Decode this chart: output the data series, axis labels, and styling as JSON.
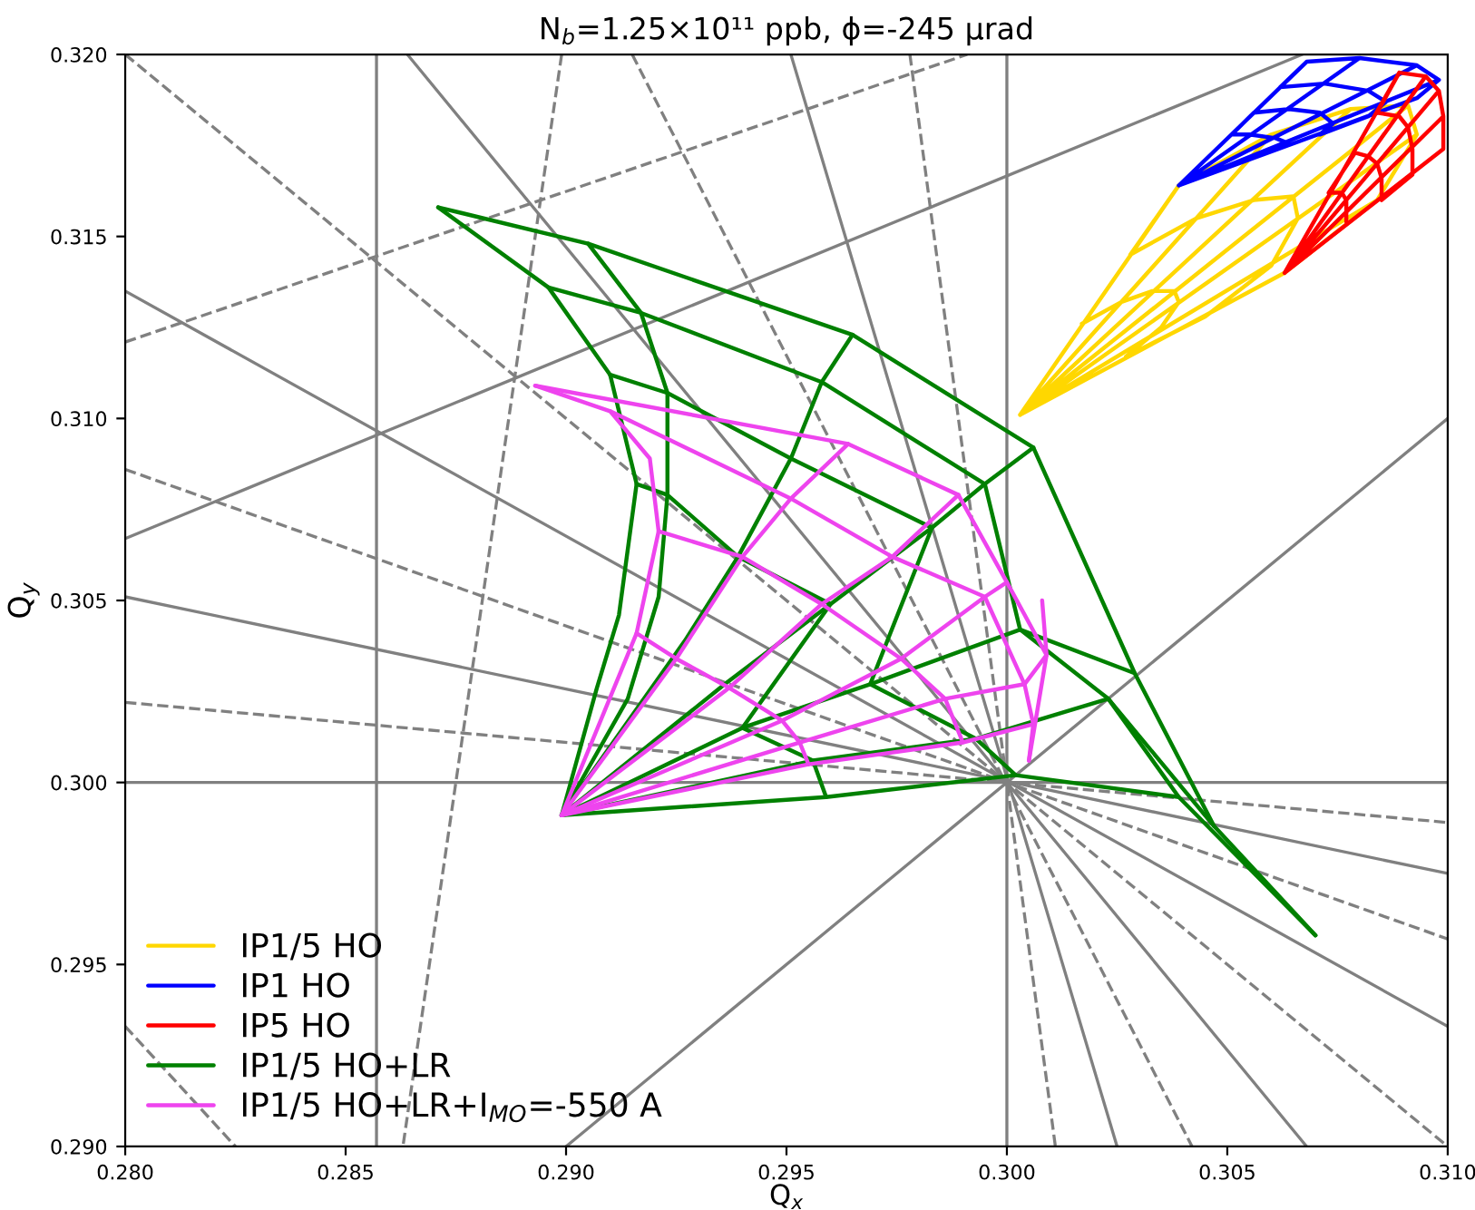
{
  "chart_data": {
    "type": "line",
    "title": "N$_{b}$=1.25×10¹¹ ppb, ϕ=-245 μrad",
    "xlabel": "Q$_{x}$",
    "ylabel": "Q$_{y}$",
    "xlim": [
      0.28,
      0.31
    ],
    "ylim": [
      0.29,
      0.32
    ],
    "xticks": [
      {
        "value": 0.28,
        "label": "0.280"
      },
      {
        "value": 0.285,
        "label": "0.285"
      },
      {
        "value": 0.29,
        "label": "0.290"
      },
      {
        "value": 0.295,
        "label": "0.295"
      },
      {
        "value": 0.3,
        "label": "0.300"
      },
      {
        "value": 0.305,
        "label": "0.305"
      },
      {
        "value": 0.31,
        "label": "0.310"
      }
    ],
    "yticks": [
      {
        "value": 0.29,
        "label": "0.290"
      },
      {
        "value": 0.295,
        "label": "0.295"
      },
      {
        "value": 0.3,
        "label": "0.300"
      },
      {
        "value": 0.305,
        "label": "0.305"
      },
      {
        "value": 0.31,
        "label": "0.310"
      },
      {
        "value": 0.315,
        "label": "0.315"
      },
      {
        "value": 0.32,
        "label": "0.320"
      }
    ],
    "legend": "bottom left",
    "marker": "none",
    "ref_lines": [
      {
        "axis": "x",
        "value": 0.3,
        "color": "#808080",
        "line_style": "solid"
      },
      {
        "axis": "x",
        "value": 0.2857,
        "color": "#808080",
        "line_style": "solid"
      },
      {
        "axis": "y",
        "value": 0.3,
        "color": "#808080",
        "line_style": "solid"
      }
    ],
    "series": [
      {
        "color": "#808080",
        "line_style": "solid",
        "x": [
          0.29,
          0.31
        ],
        "values": [
          0.29,
          0.31
        ]
      },
      {
        "color": "#808080",
        "line_style": "solid",
        "x": [
          0.28,
          0.3067
        ],
        "values": [
          0.3067,
          0.32
        ]
      },
      {
        "color": "#808080",
        "line_style": "solid",
        "x": [
          0.28,
          0.31
        ],
        "values": [
          0.3135,
          0.2933
        ]
      },
      {
        "color": "#808080",
        "line_style": "solid",
        "x": [
          0.28,
          0.31
        ],
        "values": [
          0.3051,
          0.2975
        ]
      },
      {
        "color": "#808080",
        "line_style": "solid",
        "x": [
          0.2864,
          0.3068
        ],
        "values": [
          0.32,
          0.29
        ]
      },
      {
        "color": "#808080",
        "line_style": "solid",
        "x": [
          0.2951,
          0.3025
        ],
        "values": [
          0.32,
          0.29
        ]
      },
      {
        "color": "#808080",
        "line_style": "dashed",
        "x": [
          0.28,
          0.31
        ],
        "values": [
          0.32,
          0.29
        ]
      },
      {
        "color": "#808080",
        "line_style": "dashed",
        "x": [
          0.28,
          0.31
        ],
        "values": [
          0.3086,
          0.2957
        ]
      },
      {
        "color": "#808080",
        "line_style": "dashed",
        "x": [
          0.28,
          0.31
        ],
        "values": [
          0.3022,
          0.2989
        ]
      },
      {
        "color": "#808080",
        "line_style": "dashed",
        "x": [
          0.2915,
          0.3042
        ],
        "values": [
          0.32,
          0.29
        ]
      },
      {
        "color": "#808080",
        "line_style": "dashed",
        "x": [
          0.2978,
          0.3011
        ],
        "values": [
          0.32,
          0.29
        ]
      },
      {
        "color": "#808080",
        "line_style": "dashed",
        "x": [
          0.28,
          0.2991
        ],
        "values": [
          0.3121,
          0.32
        ]
      },
      {
        "color": "#808080",
        "line_style": "dashed",
        "x": [
          0.2899,
          0.2863
        ],
        "values": [
          0.32,
          0.29
        ]
      },
      {
        "color": "#808080",
        "line_style": "dashed",
        "x": [
          0.28,
          0.2825
        ],
        "values": [
          0.2933,
          0.29
        ]
      },
      {
        "name": "IP1/5 HO",
        "color": "#ffd700",
        "x": [
          0.3003,
          0.3039,
          0.306,
          0.3003,
          0.3078,
          0.3091,
          0.3003,
          0.3093,
          0.3084,
          0.3003,
          0.3063,
          0.3084,
          0.3093,
          0.3091,
          0.3078,
          0.306,
          0.3039,
          0.3028,
          0.3043,
          0.3056,
          0.3065,
          0.3066,
          0.306,
          0.3045,
          0.3027,
          0.3035,
          0.3039,
          0.3038,
          0.3033,
          0.3026,
          0.3017
        ],
        "values": [
          0.3101,
          0.3164,
          0.3178,
          0.3101,
          0.3185,
          0.3186,
          0.3101,
          0.3178,
          0.316,
          0.3101,
          0.314,
          0.316,
          0.3178,
          0.3186,
          0.3185,
          0.3178,
          0.3164,
          0.3145,
          0.3155,
          0.316,
          0.3161,
          0.3155,
          0.3142,
          0.3128,
          0.3117,
          0.3125,
          0.3132,
          0.3135,
          0.3135,
          0.3132,
          0.3126
        ]
      },
      {
        "name": "IP1 HO",
        "color": "#0000ff",
        "x": [
          0.3039,
          0.3068,
          0.308,
          0.3039,
          0.3093,
          0.3098,
          0.3039,
          0.3093,
          0.3098,
          0.3093,
          0.308,
          0.3068,
          0.3062,
          0.3072,
          0.3082,
          0.3086,
          0.3082,
          0.3071,
          0.3074,
          0.3071,
          0.3064,
          0.3056,
          0.3051,
          0.3055,
          0.3061,
          0.3063,
          0.3061
        ],
        "values": [
          0.3164,
          0.3198,
          0.3199,
          0.3164,
          0.3197,
          0.3193,
          0.3164,
          0.3188,
          0.3193,
          0.3197,
          0.3199,
          0.3198,
          0.3191,
          0.3192,
          0.319,
          0.3187,
          0.3183,
          0.3178,
          0.3181,
          0.3184,
          0.3185,
          0.3184,
          0.3178,
          0.3178,
          0.3177,
          0.3176,
          0.3174
        ]
      },
      {
        "name": "IP5 HO",
        "color": "#ff0000",
        "x": [
          0.3063,
          0.3089,
          0.3095,
          0.3063,
          0.3098,
          0.3099,
          0.3063,
          0.3099,
          0.3099,
          0.3098,
          0.3095,
          0.3089,
          0.3084,
          0.3089,
          0.3091,
          0.3092,
          0.3092,
          0.3085,
          0.3085,
          0.3084,
          0.3082,
          0.3079,
          0.3073,
          0.3076,
          0.3077,
          0.3077,
          0.3077
        ],
        "values": [
          0.314,
          0.3195,
          0.3194,
          0.314,
          0.319,
          0.3183,
          0.314,
          0.3174,
          0.3183,
          0.319,
          0.3194,
          0.3195,
          0.3184,
          0.3183,
          0.318,
          0.3174,
          0.3167,
          0.316,
          0.3166,
          0.317,
          0.3172,
          0.3173,
          0.3162,
          0.3162,
          0.316,
          0.3157,
          0.3154
        ]
      },
      {
        "name": "IP1/5 HO+LR",
        "color": "#008000",
        "x": [
          0.2899,
          0.2907,
          0.2912,
          0.2916,
          0.291,
          0.2896,
          0.2871
        ],
        "values": [
          0.2991,
          0.3026,
          0.3046,
          0.3082,
          0.3112,
          0.3136,
          0.3158
        ]
      },
      {
        "color": "#008000",
        "x": [
          0.2899,
          0.2914,
          0.2921,
          0.2923,
          0.2923,
          0.2917,
          0.2905
        ],
        "values": [
          0.2991,
          0.3023,
          0.3051,
          0.3079,
          0.3107,
          0.3129,
          0.3148
        ]
      },
      {
        "color": "#008000",
        "x": [
          0.2899,
          0.2927,
          0.2939,
          0.2951,
          0.2958,
          0.2965
        ],
        "values": [
          0.2991,
          0.3039,
          0.3062,
          0.3089,
          0.311,
          0.3123
        ]
      },
      {
        "color": "#008000",
        "x": [
          0.2899,
          0.2936,
          0.296,
          0.2983,
          0.2995,
          0.3006
        ],
        "values": [
          0.2991,
          0.3027,
          0.3049,
          0.307,
          0.3082,
          0.3092
        ]
      },
      {
        "color": "#008000",
        "x": [
          0.2899,
          0.294,
          0.2969,
          0.3003,
          0.3029
        ],
        "values": [
          0.2991,
          0.3015,
          0.3027,
          0.3042,
          0.303
        ]
      },
      {
        "color": "#008000",
        "x": [
          0.2899,
          0.2956,
          0.2993,
          0.3023,
          0.3047
        ],
        "values": [
          0.2991,
          0.3006,
          0.3012,
          0.3023,
          0.2988
        ]
      },
      {
        "color": "#008000",
        "x": [
          0.2899,
          0.2959,
          0.3002,
          0.3039,
          0.307
        ],
        "values": [
          0.2991,
          0.2996,
          0.3002,
          0.2996,
          0.2958
        ]
      },
      {
        "color": "#008000",
        "x": [
          0.2871,
          0.2905,
          0.2965,
          0.3006,
          0.3029,
          0.3047,
          0.307
        ],
        "values": [
          0.3158,
          0.3148,
          0.3123,
          0.3092,
          0.303,
          0.2988,
          0.2958
        ]
      },
      {
        "color": "#008000",
        "x": [
          0.2896,
          0.2917,
          0.2958,
          0.2995,
          0.3003,
          0.3023,
          0.3039
        ],
        "values": [
          0.3136,
          0.3129,
          0.311,
          0.3082,
          0.3042,
          0.3023,
          0.2996
        ]
      },
      {
        "color": "#008000",
        "x": [
          0.291,
          0.2923,
          0.2951,
          0.2983,
          0.2969,
          0.2993,
          0.3002
        ],
        "values": [
          0.3112,
          0.3107,
          0.3089,
          0.307,
          0.3027,
          0.3012,
          0.3002
        ]
      },
      {
        "color": "#008000",
        "x": [
          0.2916,
          0.2923,
          0.2939,
          0.296,
          0.294,
          0.2956,
          0.2959
        ],
        "values": [
          0.3082,
          0.3079,
          0.3062,
          0.3049,
          0.3015,
          0.3006,
          0.2996
        ]
      },
      {
        "name": "IP1/5 HO+LR+I$_{MO}$=-550 A",
        "color": "#ee44ee",
        "x": [
          0.2899,
          0.2916,
          0.2921,
          0.2919,
          0.291,
          0.2893
        ],
        "values": [
          0.2991,
          0.3041,
          0.3069,
          0.3089,
          0.3102,
          0.3109
        ]
      },
      {
        "color": "#ee44ee",
        "x": [
          0.2899,
          0.2925,
          0.294,
          0.2951,
          0.2964
        ],
        "values": [
          0.2991,
          0.3034,
          0.3062,
          0.3078,
          0.3093
        ]
      },
      {
        "color": "#ee44ee",
        "x": [
          0.2899,
          0.2937,
          0.2958,
          0.2974,
          0.2989
        ],
        "values": [
          0.2991,
          0.3026,
          0.3049,
          0.3062,
          0.3079
        ]
      },
      {
        "color": "#ee44ee",
        "x": [
          0.2899,
          0.2949,
          0.2976,
          0.2995,
          0.3
        ],
        "values": [
          0.2991,
          0.3017,
          0.3034,
          0.3051,
          0.3055
        ]
      },
      {
        "color": "#ee44ee",
        "x": [
          0.2899,
          0.2953,
          0.2986,
          0.3004,
          0.3009,
          0.3008
        ],
        "values": [
          0.2991,
          0.3011,
          0.3023,
          0.3027,
          0.3035,
          0.305
        ]
      },
      {
        "color": "#ee44ee",
        "x": [
          0.2899,
          0.2955,
          0.299,
          0.3006,
          0.3005
        ],
        "values": [
          0.2991,
          0.3005,
          0.3011,
          0.3016,
          0.3006
        ]
      },
      {
        "color": "#ee44ee",
        "x": [
          0.2893,
          0.2964,
          0.2989,
          0.3,
          0.3009,
          0.3005
        ],
        "values": [
          0.3109,
          0.3093,
          0.3079,
          0.3055,
          0.3035,
          0.3006
        ]
      },
      {
        "color": "#ee44ee",
        "x": [
          0.291,
          0.2951,
          0.2974,
          0.2995,
          0.3004,
          0.3006
        ],
        "values": [
          0.3102,
          0.3078,
          0.3062,
          0.3051,
          0.3027,
          0.3016
        ]
      },
      {
        "color": "#ee44ee",
        "x": [
          0.2921,
          0.294,
          0.2958,
          0.2976,
          0.2986,
          0.299
        ],
        "values": [
          0.3069,
          0.3062,
          0.3049,
          0.3034,
          0.3023,
          0.3011
        ]
      },
      {
        "color": "#ee44ee",
        "x": [
          0.2916,
          0.2925,
          0.2937,
          0.2949,
          0.2953,
          0.2955
        ],
        "values": [
          0.3041,
          0.3034,
          0.3026,
          0.3017,
          0.3011,
          0.3005
        ]
      }
    ]
  }
}
